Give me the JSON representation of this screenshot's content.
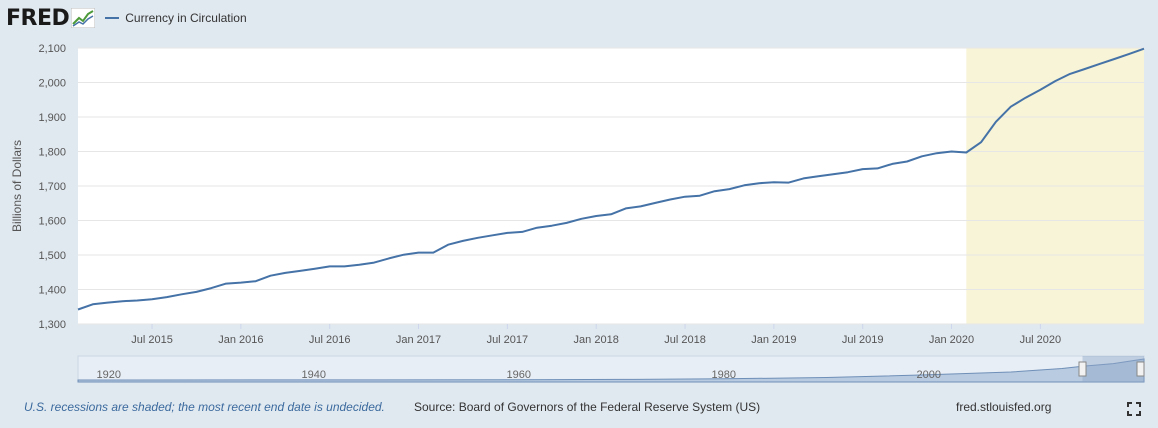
{
  "header": {
    "logo_text": "FRED",
    "legend_label": "Currency in Circulation"
  },
  "footer": {
    "recession_note": "U.S. recessions are shaded; the most recent end date is undecided.",
    "source": "Source: Board of Governors of the Federal Reserve System (US)",
    "url": "fred.stlouisfed.org"
  },
  "colors": {
    "series": "#4572a7",
    "recession": "#f7f4d7",
    "background": "#e1e9f0",
    "plot": "#ffffff",
    "navigator_fill": "#b8cbe0",
    "navigator_selection": "#8da6c7"
  },
  "chart_data": {
    "type": "line",
    "title": "",
    "ylabel": "Billions of Dollars",
    "xlabel": "",
    "ylim": [
      1300,
      2100
    ],
    "yticks": [
      1300,
      1400,
      1500,
      1600,
      1700,
      1800,
      1900,
      2000,
      2100
    ],
    "ytick_labels": [
      "1,300",
      "1,400",
      "1,500",
      "1,600",
      "1,700",
      "1,800",
      "1,900",
      "2,000",
      "2,100"
    ],
    "x_range": [
      "2015-02",
      "2021-02"
    ],
    "xticks": [
      {
        "date": "2015-07",
        "label": "Jul 2015"
      },
      {
        "date": "2016-01",
        "label": "Jan 2016"
      },
      {
        "date": "2016-07",
        "label": "Jul 2016"
      },
      {
        "date": "2017-01",
        "label": "Jan 2017"
      },
      {
        "date": "2017-07",
        "label": "Jul 2017"
      },
      {
        "date": "2018-01",
        "label": "Jan 2018"
      },
      {
        "date": "2018-07",
        "label": "Jul 2018"
      },
      {
        "date": "2019-01",
        "label": "Jan 2019"
      },
      {
        "date": "2019-07",
        "label": "Jul 2019"
      },
      {
        "date": "2020-01",
        "label": "Jan 2020"
      },
      {
        "date": "2020-07",
        "label": "Jul 2020"
      }
    ],
    "recession": {
      "start": "2020-02",
      "end": "2021-02"
    },
    "series": [
      {
        "name": "Currency in Circulation",
        "x": [
          "2015-02",
          "2015-03",
          "2015-04",
          "2015-05",
          "2015-06",
          "2015-07",
          "2015-08",
          "2015-09",
          "2015-10",
          "2015-11",
          "2015-12",
          "2016-01",
          "2016-02",
          "2016-03",
          "2016-04",
          "2016-05",
          "2016-06",
          "2016-07",
          "2016-08",
          "2016-09",
          "2016-10",
          "2016-11",
          "2016-12",
          "2017-01",
          "2017-02",
          "2017-03",
          "2017-04",
          "2017-05",
          "2017-06",
          "2017-07",
          "2017-08",
          "2017-09",
          "2017-10",
          "2017-11",
          "2017-12",
          "2018-01",
          "2018-02",
          "2018-03",
          "2018-04",
          "2018-05",
          "2018-06",
          "2018-07",
          "2018-08",
          "2018-09",
          "2018-10",
          "2018-11",
          "2018-12",
          "2019-01",
          "2019-02",
          "2019-03",
          "2019-04",
          "2019-05",
          "2019-06",
          "2019-07",
          "2019-08",
          "2019-09",
          "2019-10",
          "2019-11",
          "2019-12",
          "2020-01",
          "2020-02",
          "2020-03",
          "2020-04",
          "2020-05",
          "2020-06",
          "2020-07",
          "2020-08",
          "2020-09",
          "2020-10",
          "2020-11",
          "2020-12",
          "2021-01",
          "2021-02"
        ],
        "values": [
          1342,
          1357,
          1362,
          1366,
          1368,
          1372,
          1378,
          1386,
          1393,
          1404,
          1417,
          1420,
          1424,
          1440,
          1448,
          1454,
          1460,
          1467,
          1467,
          1472,
          1478,
          1490,
          1501,
          1507,
          1507,
          1530,
          1541,
          1550,
          1557,
          1564,
          1567,
          1579,
          1585,
          1593,
          1605,
          1613,
          1618,
          1635,
          1641,
          1651,
          1661,
          1669,
          1672,
          1685,
          1691,
          1702,
          1708,
          1711,
          1710,
          1722,
          1728,
          1734,
          1740,
          1749,
          1751,
          1764,
          1771,
          1786,
          1795,
          1800,
          1797,
          1827,
          1886,
          1930,
          1956,
          1979,
          2004,
          2025,
          2039,
          2054,
          2068,
          2083,
          2098
        ]
      }
    ]
  },
  "navigator": {
    "tick_labels": [
      "1920",
      "1940",
      "1960",
      "1980",
      "2000"
    ],
    "tick_years": [
      1920,
      1940,
      1960,
      1980,
      2000
    ],
    "year_range": [
      1917,
      2021
    ],
    "selection_years": [
      2015,
      2021
    ]
  }
}
